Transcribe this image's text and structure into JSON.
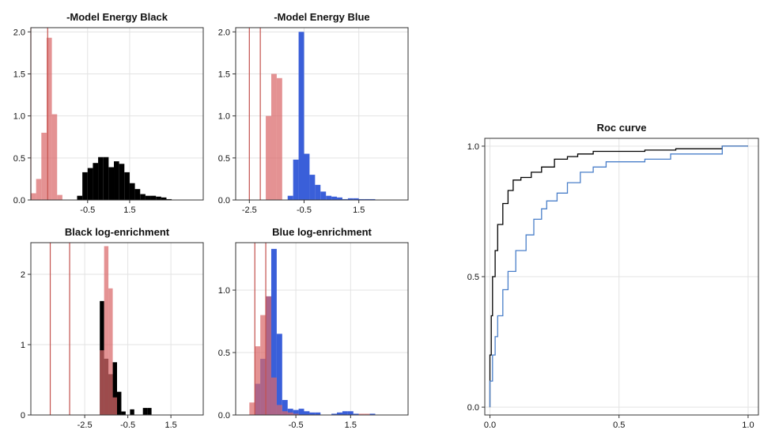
{
  "colors": {
    "black": "#000000",
    "blue": "#3a5fd9",
    "red": "#d9686a",
    "vline": "#c4514d",
    "roc_blue": "#4a7fc9"
  },
  "chart_data": [
    {
      "id": "energy-black",
      "type": "bar",
      "title": "-Model Energy Black",
      "xlim": [
        -3.2,
        5.0
      ],
      "ylim": [
        0,
        2.05
      ],
      "xticks": [
        {
          "v": -0.5,
          "label": "-0.5"
        },
        {
          "v": 1.5,
          "label": "1.5"
        }
      ],
      "yticks": [
        {
          "v": 0,
          "label": "0.0"
        },
        {
          "v": 0.5,
          "label": "0.5"
        },
        {
          "v": 1.0,
          "label": "1.0"
        },
        {
          "v": 1.5,
          "label": "1.5"
        },
        {
          "v": 2.0,
          "label": "2.0"
        }
      ],
      "vlines": [
        -3.2,
        -2.4
      ],
      "series": [
        {
          "color": "red",
          "bin_width": 0.25,
          "x0": -3.2,
          "values": [
            0.08,
            0.25,
            0.8,
            1.93,
            1.02,
            0.06
          ]
        },
        {
          "color": "black",
          "bin_width": 0.25,
          "x0": -1.0,
          "values": [
            0.05,
            0.33,
            0.38,
            0.44,
            0.51,
            0.51,
            0.39,
            0.46,
            0.43,
            0.33,
            0.2,
            0.13,
            0.07,
            0.05,
            0.05,
            0.04,
            0.03,
            0.01
          ]
        }
      ]
    },
    {
      "id": "energy-blue",
      "type": "bar",
      "title": "-Model Energy Blue",
      "xlim": [
        -3.0,
        3.3
      ],
      "ylim": [
        0,
        2.05
      ],
      "xticks": [
        {
          "v": -2.5,
          "label": "-2.5"
        },
        {
          "v": -0.5,
          "label": "-0.5"
        },
        {
          "v": 1.5,
          "label": "1.5"
        }
      ],
      "yticks": [
        {
          "v": 0,
          "label": "0.0"
        },
        {
          "v": 0.5,
          "label": "0.5"
        },
        {
          "v": 1.0,
          "label": "1.0"
        },
        {
          "v": 1.5,
          "label": "1.5"
        },
        {
          "v": 2.0,
          "label": "2.0"
        }
      ],
      "vlines": [
        -2.5,
        -2.1
      ],
      "series": [
        {
          "color": "red",
          "bin_width": 0.2,
          "x0": -1.9,
          "values": [
            1.0,
            1.5,
            1.45,
            0.0
          ]
        },
        {
          "color": "blue",
          "bin_width": 0.2,
          "x0": -1.3,
          "values": [
            0.0,
            0.05,
            0.48,
            2.0,
            0.55,
            0.3,
            0.18,
            0.1,
            0.05,
            0.04,
            0.03,
            0.01,
            0.02,
            0.02,
            0.01,
            0.01,
            0.01
          ]
        }
      ]
    },
    {
      "id": "logenr-black",
      "type": "bar",
      "title": "Black log-enrichment",
      "xlim": [
        -5.0,
        3.0
      ],
      "ylim": [
        0,
        2.45
      ],
      "xticks": [
        {
          "v": -2.5,
          "label": "-2.5"
        },
        {
          "v": -0.5,
          "label": "-0.5"
        },
        {
          "v": 1.5,
          "label": "1.5"
        }
      ],
      "yticks": [
        {
          "v": 0,
          "label": "0"
        },
        {
          "v": 1,
          "label": "1"
        },
        {
          "v": 2,
          "label": "2"
        }
      ],
      "vlines": [
        -4.1,
        -3.2
      ],
      "series": [
        {
          "color": "black",
          "bin_width": 0.2,
          "x0": -2.0,
          "values": [
            0.0,
            1.62,
            0.8,
            0.58,
            0.75,
            0.33,
            0.05,
            0.0,
            0.08,
            0.0,
            0.0,
            0.1,
            0.1
          ]
        },
        {
          "color": "red",
          "bin_width": 0.2,
          "x0": -2.0,
          "values": [
            0.0,
            0.92,
            2.4,
            1.8,
            0.25,
            0.0
          ]
        }
      ]
    },
    {
      "id": "logenr-blue",
      "type": "bar",
      "title": "Blue log-enrichment",
      "xlim": [
        -2.7,
        3.6
      ],
      "ylim": [
        0,
        1.38
      ],
      "xticks": [
        {
          "v": -0.5,
          "label": "-0.5"
        },
        {
          "v": 1.5,
          "label": "1.5"
        }
      ],
      "yticks": [
        {
          "v": 0,
          "label": "0.0"
        },
        {
          "v": 0.5,
          "label": "0.5"
        },
        {
          "v": 1.0,
          "label": "1.0"
        }
      ],
      "vlines": [
        -2.0,
        -1.6
      ],
      "series": [
        {
          "color": "blue",
          "bin_width": 0.2,
          "x0": -2.2,
          "values": [
            0.0,
            0.25,
            0.45,
            0.95,
            1.33,
            0.65,
            0.12,
            0.05,
            0.04,
            0.05,
            0.03,
            0.02,
            0.02,
            0.0,
            0.0,
            0.01,
            0.02,
            0.03,
            0.03,
            0.01,
            0.0,
            0.0,
            0.01
          ]
        },
        {
          "color": "red",
          "bin_width": 0.2,
          "x0": -2.2,
          "values": [
            0.1,
            0.55,
            0.8,
            0.95,
            0.3,
            0.08,
            0.03,
            0.02,
            0.01,
            0.0,
            0.0,
            0.0,
            0.0,
            0.0,
            0.0,
            0.0,
            0.0,
            0.0,
            0.0,
            0.0,
            0.01,
            0.01
          ]
        }
      ]
    },
    {
      "id": "roc",
      "type": "line",
      "title": "Roc curve",
      "xlim": [
        -0.02,
        1.04
      ],
      "ylim": [
        -0.03,
        1.03
      ],
      "xticks": [
        {
          "v": 0.0,
          "label": "0.0"
        },
        {
          "v": 0.5,
          "label": "0.5"
        },
        {
          "v": 1.0,
          "label": "1.0"
        }
      ],
      "yticks": [
        {
          "v": 0.0,
          "label": "0.0"
        },
        {
          "v": 0.5,
          "label": "0.5"
        },
        {
          "v": 1.0,
          "label": "1.0"
        }
      ],
      "series": [
        {
          "color": "black",
          "x": [
            0,
            0,
            0.005,
            0.005,
            0.01,
            0.01,
            0.02,
            0.02,
            0.03,
            0.03,
            0.05,
            0.05,
            0.07,
            0.07,
            0.09,
            0.09,
            0.12,
            0.12,
            0.16,
            0.16,
            0.2,
            0.2,
            0.25,
            0.25,
            0.3,
            0.3,
            0.34,
            0.34,
            0.4,
            0.4,
            0.5,
            0.5,
            0.6,
            0.6,
            0.72,
            0.72,
            0.85,
            0.85,
            0.9,
            0.9,
            1.0
          ],
          "y": [
            0,
            0.2,
            0.2,
            0.35,
            0.35,
            0.5,
            0.5,
            0.6,
            0.6,
            0.7,
            0.7,
            0.78,
            0.78,
            0.83,
            0.83,
            0.87,
            0.87,
            0.88,
            0.88,
            0.9,
            0.9,
            0.92,
            0.92,
            0.95,
            0.95,
            0.96,
            0.96,
            0.97,
            0.97,
            0.98,
            0.98,
            0.98,
            0.98,
            0.985,
            0.985,
            0.99,
            0.99,
            0.99,
            0.99,
            1.0,
            1.0
          ]
        },
        {
          "color": "roc_blue",
          "x": [
            0,
            0,
            0.01,
            0.01,
            0.02,
            0.02,
            0.03,
            0.03,
            0.05,
            0.05,
            0.07,
            0.07,
            0.1,
            0.1,
            0.14,
            0.14,
            0.17,
            0.17,
            0.2,
            0.2,
            0.22,
            0.22,
            0.26,
            0.26,
            0.3,
            0.3,
            0.35,
            0.35,
            0.4,
            0.4,
            0.45,
            0.45,
            0.5,
            0.5,
            0.6,
            0.6,
            0.7,
            0.7,
            0.9,
            0.9,
            1.0
          ],
          "y": [
            0,
            0.1,
            0.1,
            0.2,
            0.2,
            0.27,
            0.27,
            0.35,
            0.35,
            0.45,
            0.45,
            0.52,
            0.52,
            0.6,
            0.6,
            0.66,
            0.66,
            0.72,
            0.72,
            0.76,
            0.76,
            0.79,
            0.79,
            0.82,
            0.82,
            0.86,
            0.86,
            0.9,
            0.9,
            0.92,
            0.92,
            0.94,
            0.94,
            0.94,
            0.94,
            0.95,
            0.95,
            0.97,
            0.97,
            1.0,
            1.0
          ]
        }
      ]
    }
  ]
}
